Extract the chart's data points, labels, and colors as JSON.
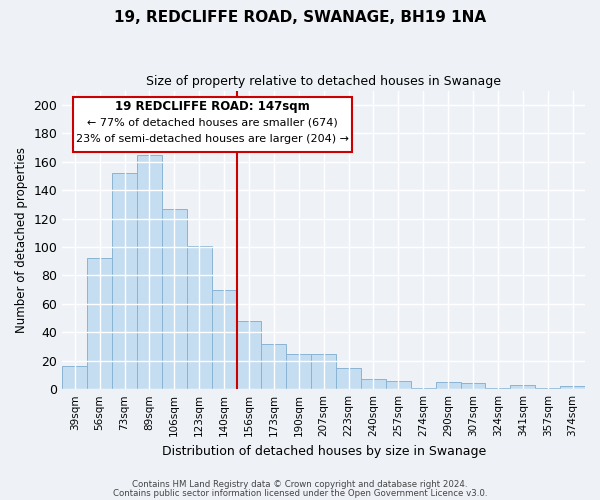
{
  "title": "19, REDCLIFFE ROAD, SWANAGE, BH19 1NA",
  "subtitle": "Size of property relative to detached houses in Swanage",
  "xlabel": "Distribution of detached houses by size in Swanage",
  "ylabel": "Number of detached properties",
  "bar_labels": [
    "39sqm",
    "56sqm",
    "73sqm",
    "89sqm",
    "106sqm",
    "123sqm",
    "140sqm",
    "156sqm",
    "173sqm",
    "190sqm",
    "207sqm",
    "223sqm",
    "240sqm",
    "257sqm",
    "274sqm",
    "290sqm",
    "307sqm",
    "324sqm",
    "341sqm",
    "357sqm",
    "374sqm"
  ],
  "bar_values": [
    16,
    92,
    152,
    165,
    127,
    101,
    70,
    48,
    32,
    25,
    25,
    15,
    7,
    6,
    1,
    5,
    4,
    1,
    3,
    1,
    2
  ],
  "bar_color": "#c5ddf0",
  "bar_edge_color": "#8ab4d4",
  "vline_color": "#cc0000",
  "ylim": [
    0,
    210
  ],
  "yticks": [
    0,
    20,
    40,
    60,
    80,
    100,
    120,
    140,
    160,
    180,
    200
  ],
  "annotation_title": "19 REDCLIFFE ROAD: 147sqm",
  "annotation_line1": "← 77% of detached houses are smaller (674)",
  "annotation_line2": "23% of semi-detached houses are larger (204) →",
  "annotation_box_color": "#ffffff",
  "annotation_box_edge": "#cc0000",
  "footer_line1": "Contains HM Land Registry data © Crown copyright and database right 2024.",
  "footer_line2": "Contains public sector information licensed under the Open Government Licence v3.0.",
  "background_color": "#eef2f7"
}
